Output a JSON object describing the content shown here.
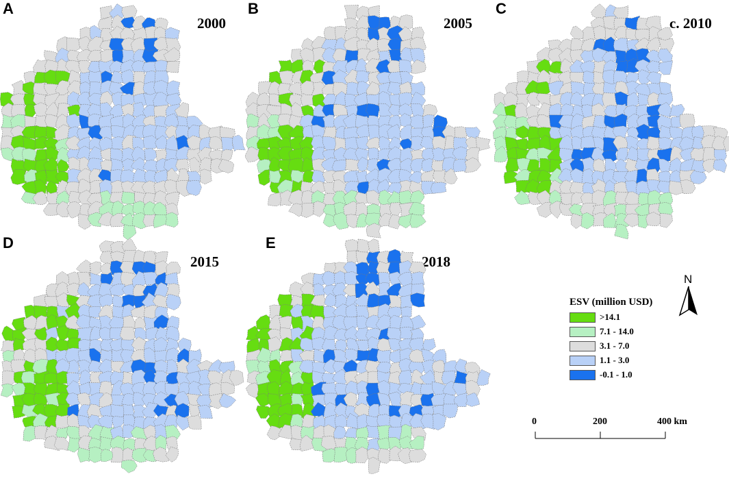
{
  "panels": [
    {
      "letter": "A",
      "year": "2000"
    },
    {
      "letter": "B",
      "year": "2005"
    },
    {
      "letter": "C",
      "year": "c. 2010"
    },
    {
      "letter": "D",
      "year": "2015"
    },
    {
      "letter": "E",
      "year": "2018"
    }
  ],
  "legend": {
    "title": "ESV (million USD)",
    "classes": [
      {
        "label": ">14.1",
        "color": "#66dd11"
      },
      {
        "label": "7.1 - 14.0",
        "color": "#b6f0c2"
      },
      {
        "label": "3.1 - 7.0",
        "color": "#dddddd"
      },
      {
        "label": "1.1 - 3.0",
        "color": "#b9d1f7"
      },
      {
        "label": "-0.1 - 1.0",
        "color": "#1a72ee"
      }
    ]
  },
  "north_arrow": {
    "label": "N"
  },
  "scale_bar": {
    "ticks": [
      "0",
      "200",
      "400 km"
    ]
  }
}
